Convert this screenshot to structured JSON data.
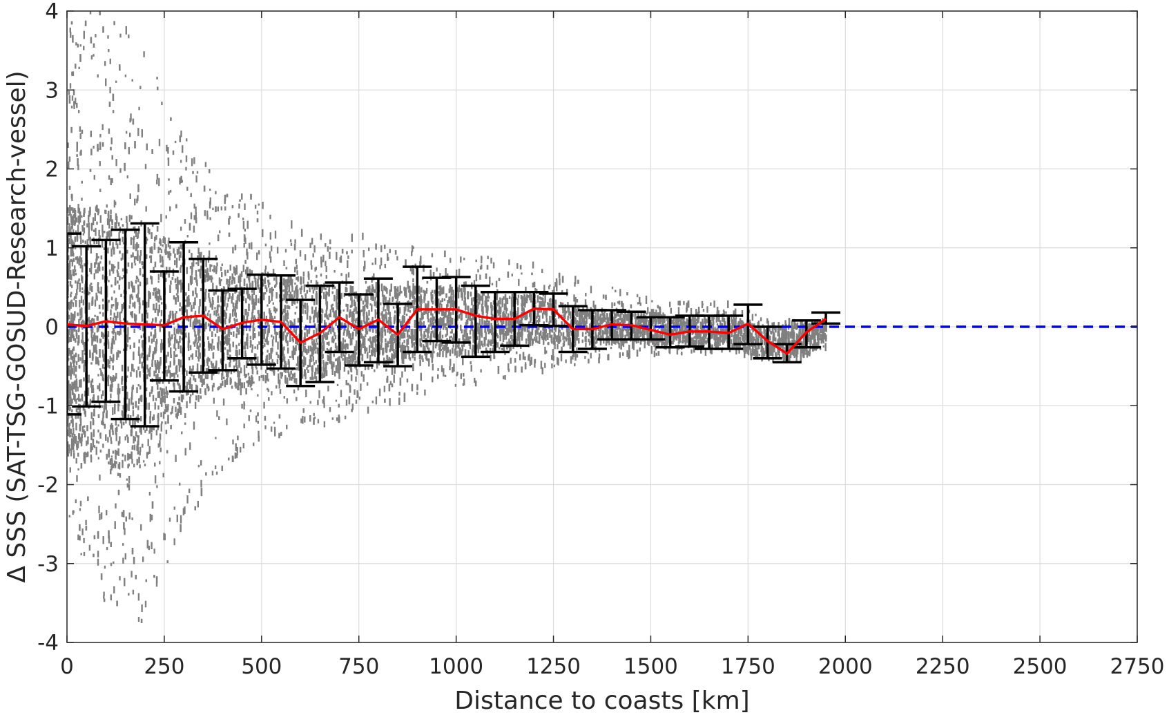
{
  "chart_data": {
    "type": "scatter",
    "title": "",
    "xlabel": "Distance to coasts [km]",
    "ylabel": "Δ SSS (SAT-TSG-GOSUD-Research-vessel)",
    "xlim": [
      0,
      2750
    ],
    "ylim": [
      -4,
      4
    ],
    "x_ticks": [
      0,
      250,
      500,
      750,
      1000,
      1250,
      1500,
      1750,
      2000,
      2250,
      2500,
      2750
    ],
    "y_ticks": [
      -4,
      -3,
      -2,
      -1,
      0,
      1,
      2,
      3,
      4
    ],
    "x_tick_labels": [
      "0",
      "250",
      "500",
      "750",
      "1000",
      "1250",
      "1500",
      "1750",
      "2000",
      "2250",
      "2500",
      "2750"
    ],
    "y_tick_labels": [
      "-4",
      "-3",
      "-2",
      "-1",
      "0",
      "1",
      "2",
      "3",
      "4"
    ],
    "grid": true,
    "colors": {
      "scatter": "#808080",
      "mean_line": "#ff0000",
      "reference_line": "#0000ff",
      "error_bars": "#000000",
      "grid": "#dcdcdc",
      "axes": "#262626"
    },
    "scatter_envelope": {
      "x": [
        0,
        100,
        200,
        300,
        400,
        500,
        600,
        700,
        800,
        900,
        1000,
        1100,
        1200,
        1300,
        1400,
        1500,
        1600,
        1700,
        1800,
        1900,
        1950
      ],
      "upper": [
        4.0,
        4.0,
        3.6,
        2.4,
        1.8,
        1.6,
        1.2,
        1.1,
        1.2,
        1.0,
        0.9,
        0.9,
        0.8,
        0.6,
        0.5,
        0.35,
        0.3,
        0.3,
        0.1,
        0.05,
        0.1
      ],
      "lower": [
        -2.5,
        -3.6,
        -3.8,
        -2.5,
        -1.8,
        -1.5,
        -1.3,
        -1.2,
        -1.0,
        -0.9,
        -0.8,
        -0.7,
        -0.6,
        -0.5,
        -0.4,
        -0.35,
        -0.35,
        -0.3,
        -0.45,
        -0.4,
        -0.3
      ],
      "core_upper": [
        1.5,
        1.5,
        1.3,
        1.0,
        0.8,
        0.7,
        0.6,
        0.5,
        0.5,
        0.5,
        0.5,
        0.4,
        0.4,
        0.25,
        0.2,
        0.15,
        0.12,
        0.1,
        0.0,
        0.0,
        0.1
      ],
      "core_lower": [
        -1.6,
        -1.8,
        -1.8,
        -1.0,
        -0.8,
        -0.7,
        -0.7,
        -0.6,
        -0.5,
        -0.4,
        -0.35,
        -0.3,
        -0.2,
        -0.25,
        -0.2,
        -0.2,
        -0.22,
        -0.25,
        -0.4,
        -0.35,
        -0.2
      ]
    },
    "series": [
      {
        "x": [
          0,
          50,
          100,
          150,
          200,
          250,
          300,
          350,
          400,
          450,
          500,
          550,
          600,
          650,
          700,
          750,
          800,
          850,
          900,
          950,
          1000,
          1050,
          1100,
          1150,
          1200,
          1250,
          1300,
          1350,
          1400,
          1450,
          1500,
          1550,
          1600,
          1650,
          1700,
          1750,
          1800,
          1850,
          1900,
          1950
        ],
        "mean": [
          0.03,
          0.01,
          0.07,
          0.04,
          0.03,
          0.02,
          0.12,
          0.14,
          -0.03,
          0.05,
          0.09,
          0.06,
          -0.2,
          -0.08,
          0.12,
          -0.03,
          0.09,
          -0.1,
          0.22,
          0.22,
          0.22,
          0.14,
          0.1,
          0.1,
          0.23,
          0.22,
          -0.03,
          -0.03,
          0.03,
          0.02,
          -0.04,
          -0.1,
          -0.06,
          -0.06,
          -0.08,
          0.04,
          -0.18,
          -0.34,
          -0.07,
          0.1
        ],
        "err_low": [
          -1.11,
          -1.01,
          -0.95,
          -1.17,
          -1.26,
          -0.68,
          -0.82,
          -0.58,
          -0.55,
          -0.4,
          -0.48,
          -0.53,
          -0.75,
          -0.7,
          -0.32,
          -0.49,
          -0.45,
          -0.5,
          -0.32,
          -0.18,
          -0.2,
          -0.38,
          -0.32,
          -0.24,
          0.02,
          0.01,
          -0.32,
          -0.28,
          -0.16,
          -0.16,
          -0.16,
          -0.26,
          -0.25,
          -0.28,
          -0.28,
          -0.22,
          -0.4,
          -0.45,
          -0.26,
          0.04
        ],
        "err_high": [
          1.18,
          1.02,
          1.1,
          1.23,
          1.31,
          0.7,
          1.07,
          0.86,
          0.46,
          0.48,
          0.66,
          0.65,
          0.34,
          0.52,
          0.56,
          0.41,
          0.61,
          0.29,
          0.76,
          0.62,
          0.63,
          0.52,
          0.44,
          0.44,
          0.44,
          0.42,
          0.26,
          0.21,
          0.21,
          0.19,
          0.12,
          0.12,
          0.14,
          0.14,
          0.14,
          0.28,
          0.0,
          -0.22,
          0.08,
          0.18
        ]
      },
      {
        "x": [
          0,
          2750
        ],
        "y": [
          0,
          0
        ]
      }
    ]
  }
}
